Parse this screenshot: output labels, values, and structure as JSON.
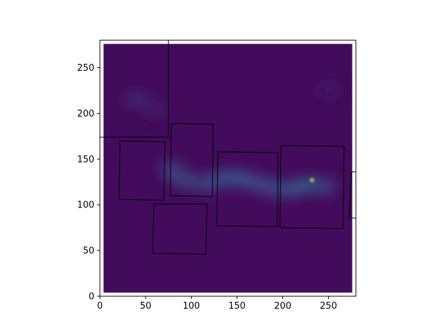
{
  "chart_data": {
    "type": "heatmap",
    "title": "",
    "xlabel": "",
    "ylabel": "",
    "colormap": "viridis",
    "xlim": [
      0,
      280
    ],
    "ylim": [
      0,
      280
    ],
    "x_ticks": [
      0,
      50,
      100,
      150,
      200,
      250
    ],
    "y_ticks": [
      0,
      50,
      100,
      150,
      200,
      250
    ],
    "x_tick_labels": [
      "0",
      "50",
      "100",
      "150",
      "200",
      "250"
    ],
    "y_tick_labels": [
      "0",
      "50",
      "100",
      "150",
      "200",
      "250"
    ],
    "image_extent": [
      4,
      276,
      4,
      276
    ],
    "background_value": 0.03,
    "emission_filament": [
      {
        "x": 78,
        "y": 140,
        "intensity": 0.18
      },
      {
        "x": 85,
        "y": 130,
        "intensity": 0.22
      },
      {
        "x": 100,
        "y": 125,
        "intensity": 0.22
      },
      {
        "x": 118,
        "y": 122,
        "intensity": 0.2
      },
      {
        "x": 130,
        "y": 128,
        "intensity": 0.24
      },
      {
        "x": 145,
        "y": 130,
        "intensity": 0.26
      },
      {
        "x": 160,
        "y": 127,
        "intensity": 0.27
      },
      {
        "x": 178,
        "y": 122,
        "intensity": 0.25
      },
      {
        "x": 195,
        "y": 117,
        "intensity": 0.24
      },
      {
        "x": 212,
        "y": 118,
        "intensity": 0.27
      },
      {
        "x": 228,
        "y": 122,
        "intensity": 0.3
      },
      {
        "x": 245,
        "y": 120,
        "intensity": 0.22
      },
      {
        "x": 40,
        "y": 215,
        "intensity": 0.12
      },
      {
        "x": 60,
        "y": 205,
        "intensity": 0.1
      },
      {
        "x": 250,
        "y": 225,
        "intensity": 0.08
      }
    ],
    "hot_spot": {
      "x": 232,
      "y": 127,
      "intensity": 0.95
    },
    "boxes": [
      {
        "corners": [
          [
            0,
            174
          ],
          [
            75,
            174
          ],
          [
            75,
            280
          ],
          [
            0,
            280
          ]
        ]
      },
      {
        "corners": [
          [
            22,
            170
          ],
          [
            71,
            169
          ],
          [
            70,
            105
          ],
          [
            21,
            106
          ]
        ]
      },
      {
        "corners": [
          [
            78,
            189
          ],
          [
            124,
            188
          ],
          [
            123,
            109
          ],
          [
            77,
            110
          ]
        ]
      },
      {
        "corners": [
          [
            129,
            158
          ],
          [
            195,
            157
          ],
          [
            194,
            76
          ],
          [
            128,
            77
          ]
        ]
      },
      {
        "corners": [
          [
            198,
            165
          ],
          [
            267,
            164
          ],
          [
            266,
            74
          ],
          [
            197,
            75
          ]
        ]
      },
      {
        "corners": [
          [
            59,
            101
          ],
          [
            117,
            101
          ],
          [
            116,
            46
          ],
          [
            58,
            47
          ]
        ]
      },
      {
        "corners": [
          [
            275,
            136
          ],
          [
            285,
            136
          ],
          [
            285,
            85
          ],
          [
            273,
            86
          ]
        ]
      }
    ]
  }
}
